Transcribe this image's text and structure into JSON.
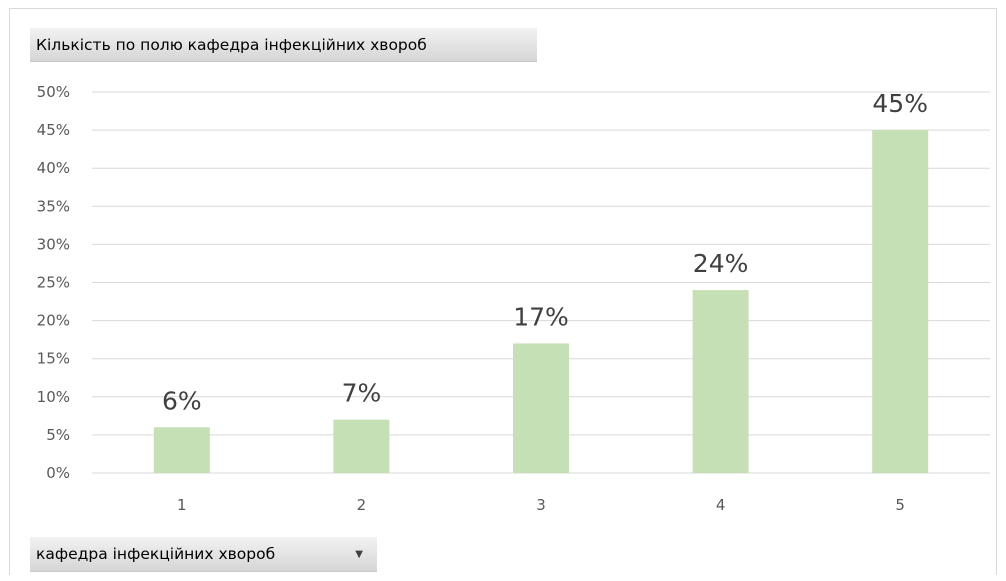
{
  "filter": {
    "field_label": "Кількість по полю кафедра інфекційних хвороб",
    "axis_field_label": "кафедра інфекційних хвороб"
  },
  "chart_data": {
    "type": "bar",
    "categories": [
      "1",
      "2",
      "3",
      "4",
      "5"
    ],
    "values": [
      6,
      7,
      17,
      24,
      45
    ],
    "value_unit": "%",
    "data_labels": [
      "6%",
      "7%",
      "17%",
      "24%",
      "45%"
    ],
    "yticks": [
      "0%",
      "5%",
      "10%",
      "15%",
      "20%",
      "25%",
      "30%",
      "35%",
      "40%",
      "45%",
      "50%"
    ],
    "ylim": [
      0,
      50
    ],
    "grid": true,
    "bar_color": "#c5e0b4",
    "grid_color": "#d9d9d9"
  }
}
